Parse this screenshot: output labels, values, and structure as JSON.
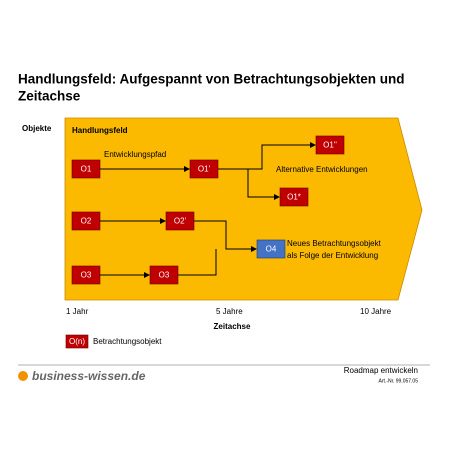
{
  "header": {
    "title_lines": [
      "Handlungsfeld: Aufgespannt von Betrachtungsobjekten und",
      "Zeitachse"
    ],
    "y_label": "Objekte"
  },
  "field": {
    "label": "Handlungsfeld",
    "path_label": "Entwicklungspfad",
    "alt_label": "Alternative Entwicklungen",
    "new_object_lines": [
      "Neues Betrachtungsobjekt",
      "als Folge der Entwicklung"
    ]
  },
  "nodes": [
    {
      "label": "O1"
    },
    {
      "label": "O1'"
    },
    {
      "label": "O1''"
    },
    {
      "label": "O1*"
    },
    {
      "label": "O2"
    },
    {
      "label": "O2'"
    },
    {
      "label": "O3"
    },
    {
      "label": "O3"
    },
    {
      "label": "O4"
    }
  ],
  "axis": {
    "ticks": [
      "1 Jahr",
      "5 Jahre",
      "10 Jahre"
    ],
    "title": "Zeitachse"
  },
  "legend": {
    "symbol": "O(n)",
    "label": "Betrachtungsobjekt"
  },
  "footer": {
    "logo": "business-wissen.de",
    "doc_title": "Roadmap entwickeln",
    "article": "Art.-Nr. 99.057.05"
  }
}
